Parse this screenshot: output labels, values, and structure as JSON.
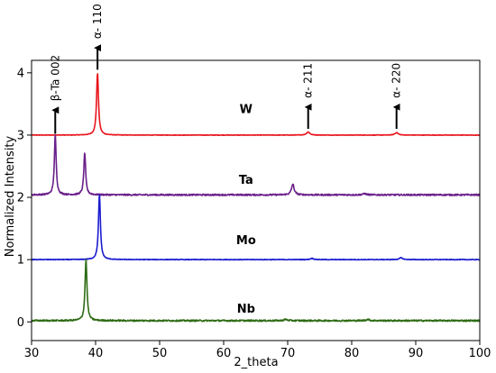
{
  "chart_data": {
    "type": "line",
    "title": "",
    "xlabel": "2_theta",
    "ylabel": "Normalized Intensity",
    "xlim": [
      30,
      100
    ],
    "ylim": [
      -0.3,
      4.2
    ],
    "xticks": [
      "30",
      "40",
      "50",
      "60",
      "70",
      "80",
      "90",
      "100"
    ],
    "yticks": [
      "0",
      "1",
      "2",
      "3",
      "4"
    ],
    "grid": false,
    "series": [
      {
        "name": "W",
        "color": "#e8141c",
        "baseline": 3.0,
        "noise": 0.004,
        "label_pos": [
          63.5,
          3.35
        ],
        "peaks": [
          {
            "x": 40.3,
            "height": 1.0,
            "width": 0.18
          },
          {
            "x": 73.2,
            "height": 0.05,
            "width": 0.3
          },
          {
            "x": 87.0,
            "height": 0.04,
            "width": 0.3
          }
        ]
      },
      {
        "name": "Ta",
        "color": "#6a1f8a",
        "baseline": 2.04,
        "noise": 0.012,
        "label_pos": [
          63.5,
          2.22
        ],
        "peaks": [
          {
            "x": 33.7,
            "height": 0.96,
            "width": 0.17
          },
          {
            "x": 38.3,
            "height": 0.68,
            "width": 0.17
          },
          {
            "x": 70.8,
            "height": 0.17,
            "width": 0.25
          },
          {
            "x": 82.0,
            "height": 0.02,
            "width": 0.3
          }
        ]
      },
      {
        "name": "Mo",
        "color": "#1b1bd0",
        "baseline": 1.0,
        "noise": 0.005,
        "label_pos": [
          63.5,
          1.25
        ],
        "peaks": [
          {
            "x": 40.6,
            "height": 1.05,
            "width": 0.18
          },
          {
            "x": 73.8,
            "height": 0.02,
            "width": 0.3
          },
          {
            "x": 87.7,
            "height": 0.03,
            "width": 0.3
          }
        ]
      },
      {
        "name": "Nb",
        "color": "#2e6b14",
        "baseline": 0.02,
        "noise": 0.012,
        "label_pos": [
          63.5,
          0.15
        ],
        "peaks": [
          {
            "x": 38.5,
            "height": 0.98,
            "width": 0.18
          },
          {
            "x": 69.7,
            "height": 0.02,
            "width": 0.3
          },
          {
            "x": 82.5,
            "height": 0.02,
            "width": 0.3
          }
        ]
      }
    ],
    "annotations": [
      {
        "text": "α- 110",
        "x": 40.3,
        "y_arrow_start": 4.05,
        "y_arrow_end": 4.4
      },
      {
        "text": "β-Ta 002",
        "x": 33.7,
        "y_arrow_start": 3.02,
        "y_arrow_end": 3.4
      },
      {
        "text": "α- 211",
        "x": 73.2,
        "y_arrow_start": 3.1,
        "y_arrow_end": 3.45
      },
      {
        "text": "α- 220",
        "x": 87.0,
        "y_arrow_start": 3.1,
        "y_arrow_end": 3.45
      }
    ]
  }
}
